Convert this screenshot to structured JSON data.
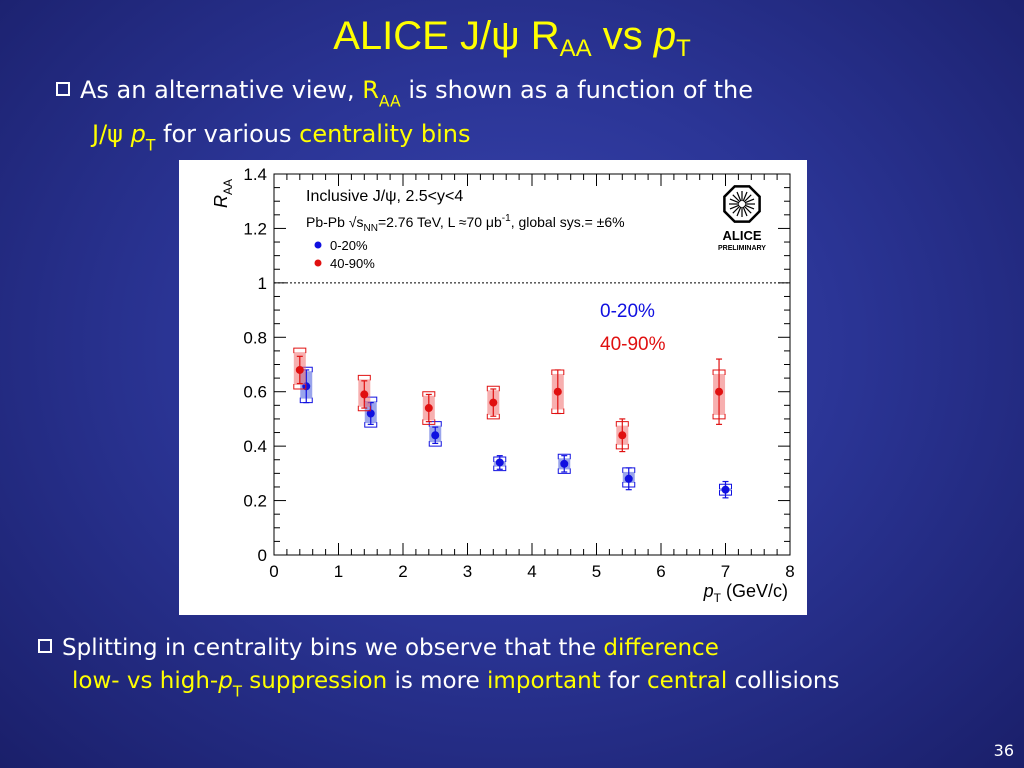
{
  "slide": {
    "title_main": "ALICE J/ψ R",
    "title_sub": "AA",
    "title_vs": " vs ",
    "title_p": "p",
    "title_psub": "T",
    "bullet1": {
      "a": "As an alternative view, ",
      "b": "R",
      "b_sub": "AA",
      "c": " is shown as a function of the",
      "d": "J/ψ ",
      "e": "p",
      "e_sub": "T",
      "f": " for various ",
      "g": "centrality bins"
    },
    "bullet2": {
      "a": "Splitting in centrality bins we observe that the ",
      "b": "difference",
      "c": "low- vs high-",
      "c_p": "p",
      "c_sub": "T",
      "d": " suppression",
      "e": " is more ",
      "f": "important",
      "g": " for ",
      "h": "central",
      "i": " collisions"
    },
    "page_number": "36"
  },
  "chart_data": {
    "type": "scatter",
    "title": "",
    "xlabel": "p",
    "xlabel_sub": "T",
    "xlabel_unit": " (GeV/c)",
    "ylabel": "R",
    "ylabel_sub": "AA",
    "xlim": [
      0,
      8
    ],
    "ylim": [
      0,
      1.4
    ],
    "x_ticks": [
      "0",
      "1",
      "2",
      "3",
      "4",
      "5",
      "6",
      "7",
      "8"
    ],
    "y_ticks": [
      "0",
      "0.2",
      "0.4",
      "0.6",
      "0.8",
      "1",
      "1.2",
      "1.4"
    ],
    "reference_line": 1,
    "annotations": {
      "line1": "Inclusive J/ψ, 2.5<y<4",
      "line2": "Pb-Pb √s",
      "line2_sub": "NN",
      "line2_rest": "=2.76 TeV, L ≈70 μb",
      "line2_sup": "-1",
      "line2_end": ", global sys.= ±6%",
      "logo_text": "ALICE",
      "logo_sub": "PRELIMINARY"
    },
    "legend": {
      "placement": "top-left",
      "entries": [
        "0-20%",
        "40-90%"
      ]
    },
    "overlay_labels": [
      "0-20%",
      "40-90%"
    ],
    "colors": {
      "central": "#1010e0",
      "peripheral": "#e01010"
    },
    "series": [
      {
        "name": "0-20%",
        "x": [
          0.5,
          1.5,
          2.5,
          3.5,
          4.5,
          5.5,
          7.0
        ],
        "y": [
          0.62,
          0.52,
          0.44,
          0.34,
          0.335,
          0.28,
          0.24
        ],
        "stat": [
          0.06,
          0.04,
          0.03,
          0.025,
          0.03,
          0.04,
          0.03
        ],
        "sys_lo": [
          0.56,
          0.47,
          0.4,
          0.31,
          0.3,
          0.25,
          0.22
        ],
        "sys_hi": [
          0.69,
          0.58,
          0.49,
          0.36,
          0.37,
          0.32,
          0.26
        ]
      },
      {
        "name": "40-90%",
        "x": [
          0.4,
          1.4,
          2.4,
          3.4,
          4.4,
          5.4,
          6.9
        ],
        "y": [
          0.68,
          0.59,
          0.54,
          0.56,
          0.6,
          0.44,
          0.6
        ],
        "stat": [
          0.05,
          0.05,
          0.05,
          0.05,
          0.08,
          0.06,
          0.12
        ],
        "sys_lo": [
          0.61,
          0.53,
          0.48,
          0.5,
          0.52,
          0.39,
          0.5
        ],
        "sys_hi": [
          0.76,
          0.66,
          0.6,
          0.62,
          0.68,
          0.49,
          0.68
        ]
      }
    ]
  }
}
